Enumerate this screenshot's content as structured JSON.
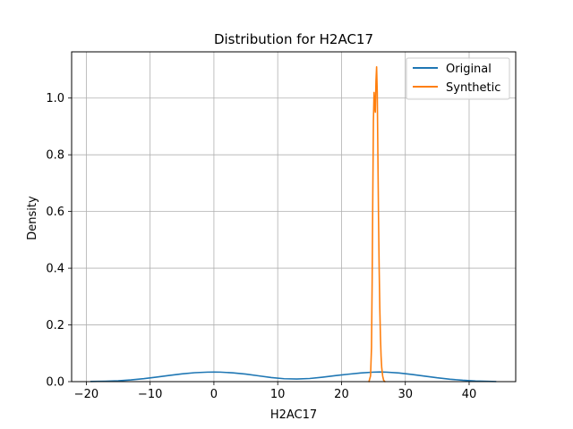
{
  "chart_data": {
    "type": "line",
    "title": "Distribution for H2AC17",
    "xlabel": "H2AC17",
    "ylabel": "Density",
    "xlim": [
      -22.3,
      47.3
    ],
    "ylim": [
      0,
      1.163
    ],
    "xticks": [
      -20,
      -10,
      0,
      10,
      20,
      30,
      40
    ],
    "yticks": [
      0.0,
      0.2,
      0.4,
      0.6,
      0.8,
      1.0
    ],
    "xtick_labels": [
      "−20",
      "−10",
      "0",
      "10",
      "20",
      "30",
      "40"
    ],
    "ytick_labels": [
      "0.0",
      "0.2",
      "0.4",
      "0.6",
      "0.8",
      "1.0"
    ],
    "grid": true,
    "legend_position": "top-right",
    "series": [
      {
        "name": "Original",
        "color": "#1f77b4",
        "points": [
          [
            -19.3,
            0.0005
          ],
          [
            -17,
            0.0015
          ],
          [
            -15,
            0.003
          ],
          [
            -13,
            0.006
          ],
          [
            -11,
            0.0105
          ],
          [
            -9,
            0.016
          ],
          [
            -7,
            0.022
          ],
          [
            -5,
            0.0275
          ],
          [
            -3,
            0.0315
          ],
          [
            -1,
            0.0335
          ],
          [
            0,
            0.0338
          ],
          [
            1,
            0.0335
          ],
          [
            3,
            0.031
          ],
          [
            5,
            0.0265
          ],
          [
            7,
            0.0205
          ],
          [
            9,
            0.0145
          ],
          [
            11,
            0.0102
          ],
          [
            13,
            0.0092
          ],
          [
            15,
            0.011
          ],
          [
            17,
            0.0155
          ],
          [
            19,
            0.021
          ],
          [
            21,
            0.026
          ],
          [
            23,
            0.0305
          ],
          [
            25,
            0.0335
          ],
          [
            26,
            0.034
          ],
          [
            27,
            0.0335
          ],
          [
            29,
            0.0305
          ],
          [
            31,
            0.0255
          ],
          [
            33,
            0.0195
          ],
          [
            35,
            0.0135
          ],
          [
            37,
            0.0085
          ],
          [
            39,
            0.0048
          ],
          [
            41,
            0.0023
          ],
          [
            43,
            0.0009
          ],
          [
            44.2,
            0.0004
          ]
        ]
      },
      {
        "name": "Synthetic",
        "color": "#ff7f0e",
        "points": [
          [
            24.3,
            0.0
          ],
          [
            24.55,
            0.02
          ],
          [
            24.7,
            0.12
          ],
          [
            24.8,
            0.35
          ],
          [
            24.9,
            0.65
          ],
          [
            25.0,
            0.92
          ],
          [
            25.1,
            1.02
          ],
          [
            25.2,
            0.97
          ],
          [
            25.3,
            0.95
          ],
          [
            25.4,
            1.06
          ],
          [
            25.5,
            1.11
          ],
          [
            25.6,
            1.02
          ],
          [
            25.7,
            0.8
          ],
          [
            25.8,
            0.58
          ],
          [
            25.9,
            0.4
          ],
          [
            26.0,
            0.26
          ],
          [
            26.1,
            0.16
          ],
          [
            26.2,
            0.09
          ],
          [
            26.3,
            0.05
          ],
          [
            26.45,
            0.02
          ],
          [
            26.6,
            0.005
          ],
          [
            26.8,
            0.0
          ]
        ]
      }
    ]
  }
}
